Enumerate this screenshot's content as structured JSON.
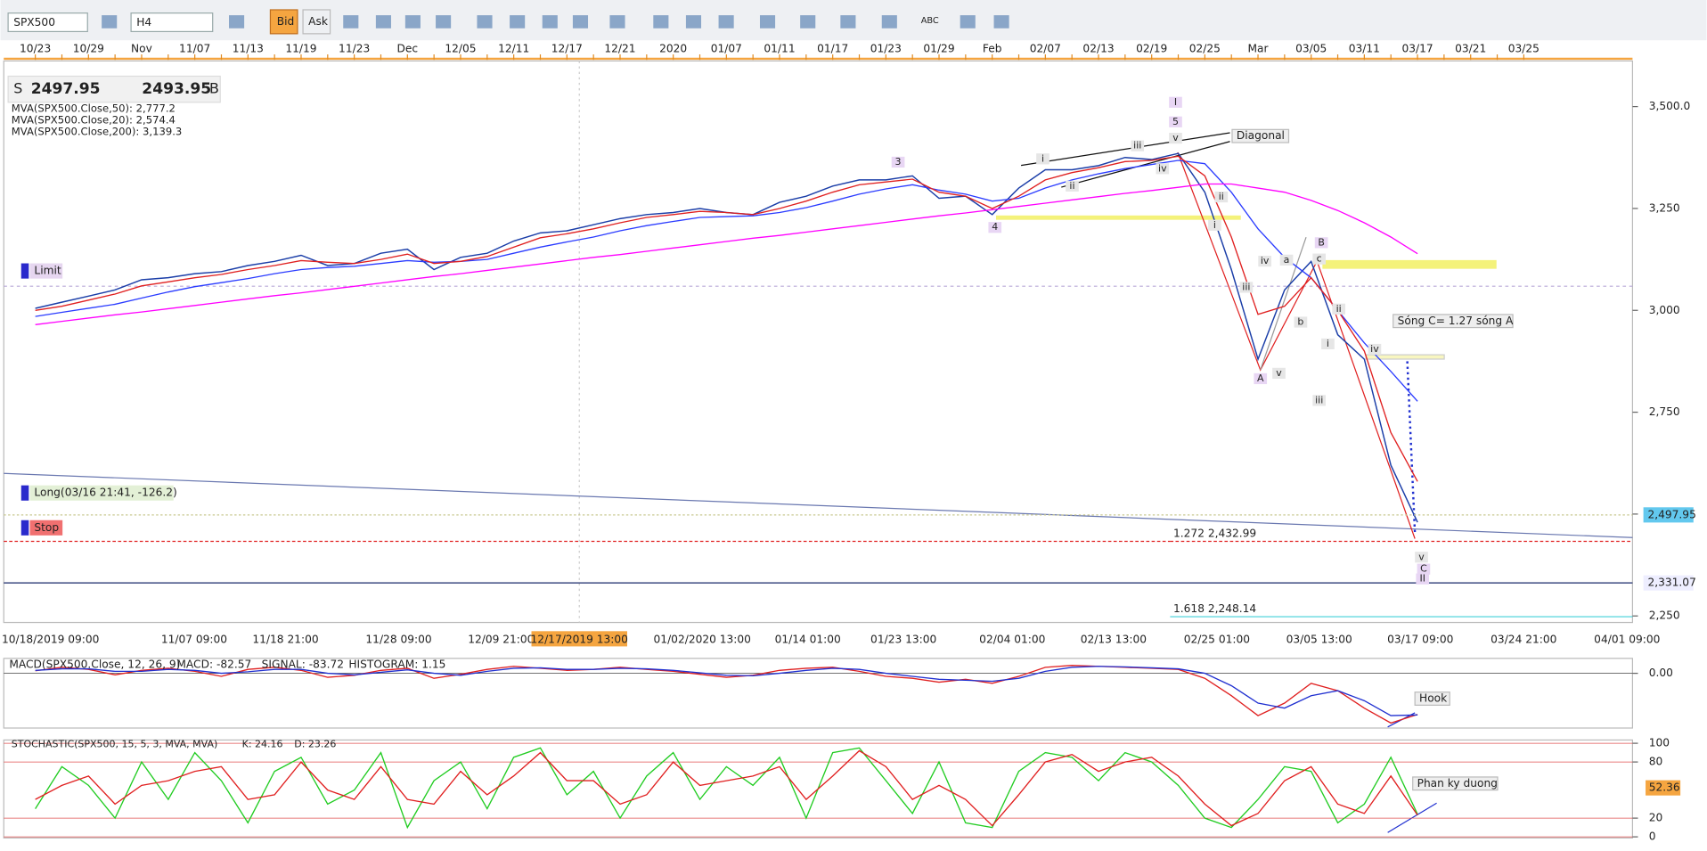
{
  "toolbar": {
    "symbol": "SPX500",
    "timeframe": "H4",
    "bid": "Bid",
    "ask": "Ask",
    "text_tool": "ABC"
  },
  "quote": {
    "sell_label": "S",
    "sell": "2497.95",
    "buy": "2493.95",
    "buy_label": "B"
  },
  "orders": {
    "limit": "Limit",
    "long": "Long(03/16 21:41, -126.2)",
    "stop": "Stop"
  },
  "annotations": {
    "diagonal": "Diagonal",
    "wave_c": "Sóng C= 1.27 sóng A",
    "hook": "Hook",
    "divergence": "Phan ky duong"
  },
  "wave_labels": [
    "I",
    "5",
    "v",
    "iii",
    "i",
    "iv",
    "ii",
    "3",
    "4",
    "ii",
    "i",
    "iii",
    "iv",
    "a",
    "B",
    "c",
    "b",
    "A",
    "v",
    "ii",
    "i",
    "iv",
    "iii",
    "v",
    "C",
    "II"
  ],
  "bottom_axis_labels": [
    "10/18/2019 09:00",
    "11/07 09:00",
    "11/18 21:00",
    "11/28 09:00",
    "12/09 21:00",
    "12/17/2019 13:00",
    "01/02/2020 13:00",
    "01/14 01:00",
    "01/23 13:00",
    "02/04 01:00",
    "02/13 13:00",
    "02/25 01:00",
    "03/05 13:00",
    "03/17 09:00",
    "03/24 21:00",
    "04/01 09:00"
  ],
  "chart_data": [
    {
      "type": "line",
      "categories": [
        "10/23",
        null,
        "10/29",
        null,
        "Nov",
        null,
        "11/07",
        null,
        "11/13",
        null,
        "11/19",
        null,
        "11/23",
        null,
        "Dec",
        null,
        "12/05",
        null,
        "12/11",
        null,
        "12/17",
        null,
        "12/21",
        null,
        "2020",
        null,
        "01/07",
        null,
        "01/11",
        null,
        "01/17",
        null,
        "01/23",
        null,
        "01/29",
        null,
        "Feb",
        null,
        "02/07",
        null,
        "02/13",
        null,
        "02/19",
        null,
        "02/25",
        null,
        "Mar",
        null,
        "03/05",
        null,
        "03/11",
        null,
        "03/17",
        null,
        "03/21",
        null,
        "03/25"
      ],
      "series": [
        {
          "color": "#1b3ea8",
          "values": [
            3005,
            3020,
            3035,
            3050,
            3075,
            3080,
            3090,
            3095,
            3110,
            3120,
            3135,
            3110,
            3115,
            3140,
            3150,
            3100,
            3130,
            3140,
            3170,
            3190,
            3195,
            3210,
            3225,
            3235,
            3240,
            3250,
            3240,
            3235,
            3265,
            3280,
            3305,
            3320,
            3320,
            3330,
            3275,
            3280,
            3235,
            3300,
            3345,
            3345,
            3355,
            3375,
            3370,
            3385,
            3290,
            3100,
            2880,
            3050,
            3120,
            2940,
            2880,
            2620,
            2480,
            null,
            null,
            null,
            null
          ]
        },
        {
          "name": "MVA(SPX500.Close,50): 2,777.2",
          "color": "#2b3cff",
          "values": [
            2985,
            2995,
            3005,
            3015,
            3030,
            3045,
            3058,
            3068,
            3078,
            3090,
            3100,
            3105,
            3108,
            3115,
            3122,
            3118,
            3120,
            3125,
            3140,
            3155,
            3168,
            3180,
            3195,
            3208,
            3218,
            3228,
            3230,
            3232,
            3240,
            3252,
            3268,
            3285,
            3298,
            3308,
            3295,
            3285,
            3268,
            3275,
            3300,
            3320,
            3335,
            3348,
            3358,
            3368,
            3360,
            3290,
            3200,
            3130,
            3080,
            3000,
            2920,
            2850,
            2777,
            null,
            null,
            null,
            null
          ]
        },
        {
          "name": "MVA(SPX500.Close,20): 2,574.4",
          "color": "#e02020",
          "values": [
            3000,
            3010,
            3025,
            3040,
            3060,
            3070,
            3080,
            3088,
            3100,
            3110,
            3122,
            3118,
            3115,
            3125,
            3138,
            3115,
            3120,
            3132,
            3155,
            3178,
            3188,
            3200,
            3215,
            3228,
            3235,
            3243,
            3240,
            3235,
            3250,
            3268,
            3290,
            3308,
            3315,
            3322,
            3290,
            3280,
            3250,
            3280,
            3320,
            3338,
            3350,
            3365,
            3368,
            3378,
            3330,
            3180,
            2990,
            3010,
            3080,
            3000,
            2900,
            2700,
            2580,
            null,
            null,
            null,
            null
          ]
        },
        {
          "name": "MVA(SPX500.Close,200): 3,139.3",
          "color": "#ff00ff",
          "values": [
            2965,
            2973,
            2981,
            2989,
            2996,
            3004,
            3012,
            3020,
            3028,
            3036,
            3043,
            3051,
            3059,
            3067,
            3075,
            3083,
            3090,
            3098,
            3106,
            3114,
            3122,
            3130,
            3137,
            3145,
            3153,
            3161,
            3169,
            3177,
            3184,
            3192,
            3200,
            3208,
            3216,
            3224,
            3232,
            3239,
            3247,
            3255,
            3263,
            3271,
            3279,
            3287,
            3294,
            3302,
            3310,
            3310,
            3300,
            3290,
            3270,
            3245,
            3215,
            3180,
            3139,
            null,
            null,
            null,
            null
          ]
        }
      ],
      "ylim": [
        2234,
        3612
      ],
      "yticks": [
        {
          "value": 2250,
          "label": "2,250"
        },
        {
          "value": 2500,
          "label": "2,500"
        },
        {
          "value": 2750,
          "label": "2,750"
        },
        {
          "value": 3000,
          "label": "3,000"
        },
        {
          "value": 3250,
          "label": "3,250"
        },
        {
          "value": 3500,
          "label": "3,500.0"
        }
      ],
      "current_price": {
        "value": 2497.95,
        "label": "2,497.95"
      },
      "levels": [
        {
          "value": 2432.99,
          "label": "1.272 2,432.99"
        },
        {
          "value": 2248.14,
          "label": "1.618 2,248.14"
        },
        {
          "value": 2331.07,
          "label": "2,331.07"
        }
      ]
    },
    {
      "type": "line",
      "title": "MACD(SPX500.Close, 12, 26, 9)",
      "series": [
        {
          "name": "MACD: -82.57",
          "color": "#e02020",
          "values": [
            5,
            12,
            8,
            -3,
            6,
            10,
            4,
            -6,
            8,
            12,
            6,
            -8,
            -4,
            6,
            10,
            -10,
            -2,
            8,
            14,
            10,
            6,
            8,
            12,
            8,
            4,
            -2,
            -8,
            -4,
            6,
            10,
            12,
            4,
            -6,
            -10,
            -18,
            -12,
            -20,
            -6,
            12,
            16,
            14,
            12,
            10,
            8,
            -10,
            -45,
            -85,
            -60,
            -20,
            -35,
            -70,
            -100,
            -82.57,
            null,
            null,
            null,
            null
          ]
        },
        {
          "name": "SIGNAL: -83.72",
          "color": "#2030d0",
          "values": [
            6,
            9,
            9,
            4,
            4,
            8,
            6,
            0,
            3,
            8,
            8,
            0,
            -3,
            2,
            7,
            0,
            -4,
            4,
            10,
            11,
            8,
            8,
            10,
            9,
            6,
            1,
            -4,
            -5,
            0,
            6,
            10,
            8,
            0,
            -6,
            -12,
            -14,
            -16,
            -10,
            4,
            12,
            14,
            13,
            11,
            9,
            0,
            -25,
            -60,
            -70,
            -45,
            -35,
            -55,
            -85,
            -83.72,
            null,
            null,
            null,
            null
          ]
        }
      ],
      "histogram_label": "HISTOGRAM: 1.15",
      "ylim": [
        -110,
        30
      ],
      "yticks": [
        {
          "value": 0,
          "label": "0.00"
        }
      ]
    },
    {
      "type": "line",
      "title": "STOCHASTIC(SPX500, 15, 5, 3, MVA, MVA)",
      "series": [
        {
          "name": "K: 24.16",
          "color": "#22cc22",
          "values": [
            30,
            75,
            55,
            20,
            80,
            40,
            90,
            60,
            15,
            70,
            85,
            35,
            50,
            90,
            10,
            60,
            80,
            30,
            85,
            95,
            45,
            70,
            20,
            65,
            90,
            40,
            75,
            55,
            85,
            20,
            90,
            95,
            60,
            25,
            80,
            15,
            10,
            70,
            90,
            85,
            60,
            90,
            80,
            55,
            20,
            10,
            40,
            75,
            70,
            15,
            35,
            85,
            24.16,
            null,
            null,
            null,
            null
          ]
        },
        {
          "name": "D: 23.26",
          "color": "#e02020",
          "values": [
            40,
            55,
            65,
            35,
            55,
            60,
            70,
            75,
            40,
            45,
            80,
            50,
            40,
            75,
            40,
            35,
            70,
            45,
            65,
            90,
            60,
            60,
            35,
            45,
            80,
            55,
            60,
            65,
            75,
            40,
            65,
            92,
            75,
            40,
            55,
            40,
            12,
            45,
            80,
            88,
            70,
            80,
            85,
            65,
            35,
            12,
            25,
            60,
            75,
            35,
            25,
            65,
            23.26,
            null,
            null,
            null,
            null
          ]
        }
      ],
      "ylim": [
        0,
        100
      ],
      "yticks": [
        0,
        20,
        80,
        100
      ],
      "last_label": {
        "value": 52.36,
        "label": "52.36"
      }
    }
  ]
}
